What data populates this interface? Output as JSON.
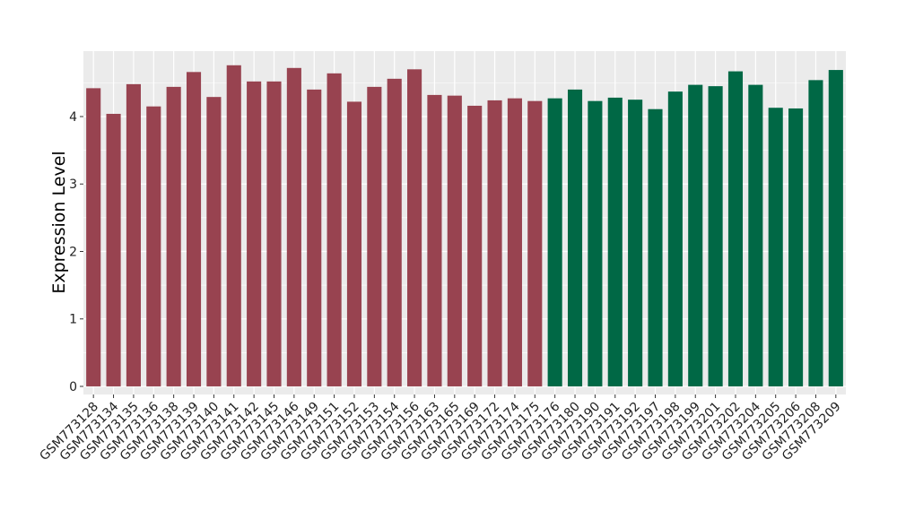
{
  "chart_data": {
    "type": "bar",
    "title": "",
    "xlabel": "",
    "ylabel": "Expression Level",
    "ylim": [
      -0.12,
      4.97
    ],
    "yticks": [
      0,
      1,
      2,
      3,
      4
    ],
    "grid": true,
    "legend": "none",
    "panel_background": "#EBEBEB",
    "gridline_color": "#FFFFFF",
    "categories": [
      "GSM773128",
      "GSM773134",
      "GSM773135",
      "GSM773136",
      "GSM773138",
      "GSM773139",
      "GSM773140",
      "GSM773141",
      "GSM773142",
      "GSM773145",
      "GSM773146",
      "GSM773149",
      "GSM773151",
      "GSM773152",
      "GSM773153",
      "GSM773154",
      "GSM773156",
      "GSM773163",
      "GSM773165",
      "GSM773169",
      "GSM773172",
      "GSM773174",
      "GSM773175",
      "GSM773176",
      "GSM773180",
      "GSM773190",
      "GSM773191",
      "GSM773192",
      "GSM773197",
      "GSM773198",
      "GSM773199",
      "GSM773201",
      "GSM773202",
      "GSM773204",
      "GSM773205",
      "GSM773206",
      "GSM773208",
      "GSM773209"
    ],
    "values": [
      4.42,
      4.04,
      4.48,
      4.15,
      4.44,
      4.66,
      4.29,
      4.76,
      4.52,
      4.52,
      4.72,
      4.4,
      4.64,
      4.22,
      4.44,
      4.56,
      4.7,
      4.32,
      4.31,
      4.16,
      4.24,
      4.27,
      4.23,
      4.27,
      4.4,
      4.23,
      4.28,
      4.25,
      4.11,
      4.37,
      4.47,
      4.45,
      4.67,
      4.47,
      4.13,
      4.12,
      4.54,
      4.69
    ],
    "bar_colors": [
      "#984350",
      "#984350",
      "#984350",
      "#984350",
      "#984350",
      "#984350",
      "#984350",
      "#984350",
      "#984350",
      "#984350",
      "#984350",
      "#984350",
      "#984350",
      "#984350",
      "#984350",
      "#984350",
      "#984350",
      "#984350",
      "#984350",
      "#984350",
      "#984350",
      "#984350",
      "#984350",
      "#006845",
      "#006845",
      "#006845",
      "#006845",
      "#006845",
      "#006845",
      "#006845",
      "#006845",
      "#006845",
      "#006845",
      "#006845",
      "#006845",
      "#006845",
      "#006845",
      "#006845"
    ]
  }
}
